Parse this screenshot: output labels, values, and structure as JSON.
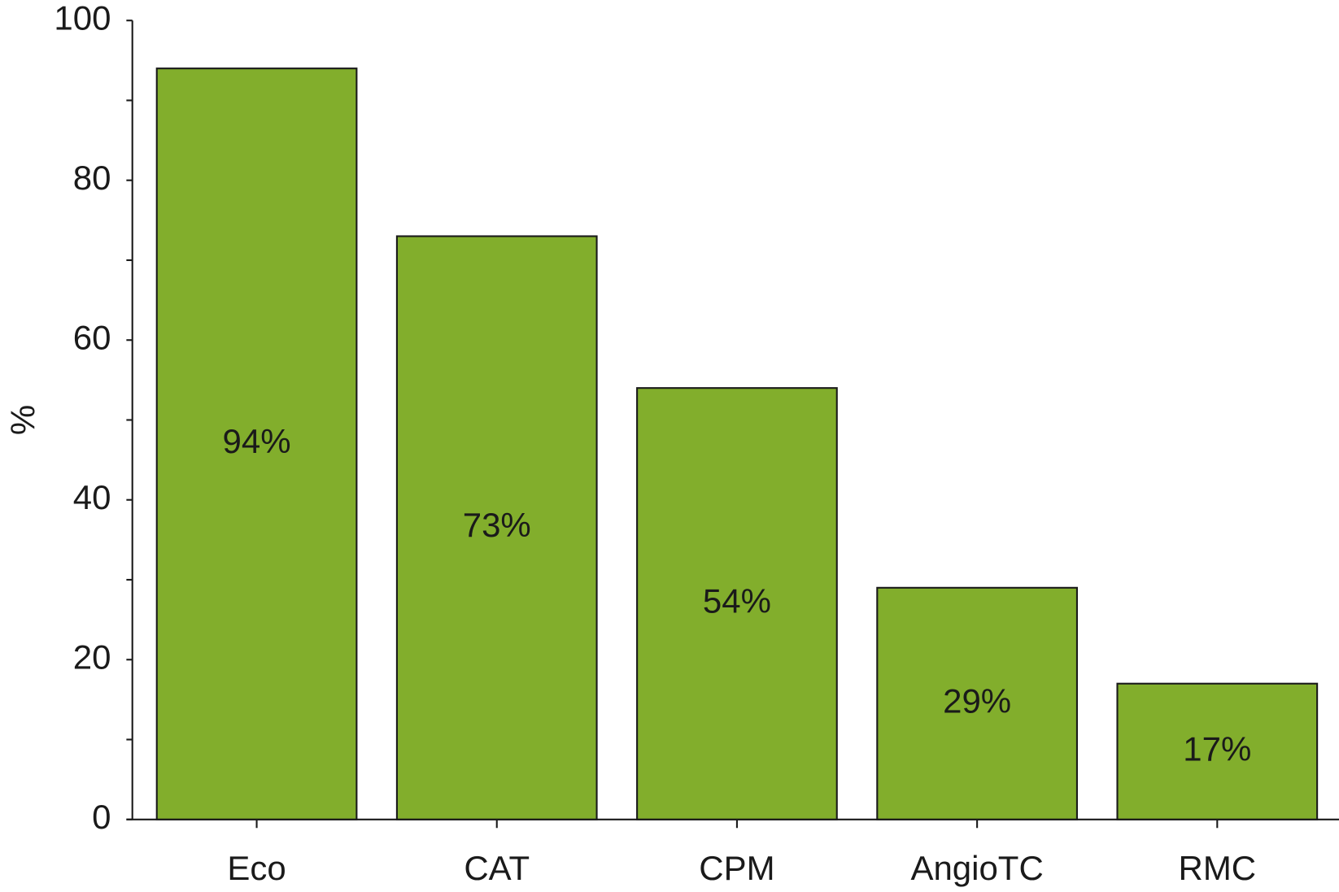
{
  "chart_data": {
    "type": "bar",
    "y_label": "%",
    "categories": [
      "Eco",
      "CAT",
      "CPM",
      "AngioTC",
      "RMC"
    ],
    "values": [
      94,
      73,
      54,
      29,
      17
    ],
    "value_labels": [
      "94%",
      "73%",
      "54%",
      "29%",
      "17%"
    ],
    "color": "#82ae2c",
    "ylim": [
      0,
      100
    ],
    "yticks": [
      0,
      20,
      40,
      60,
      80,
      100
    ],
    "minor_yticks": [
      10,
      30,
      50,
      70,
      90
    ],
    "grid": false
  }
}
